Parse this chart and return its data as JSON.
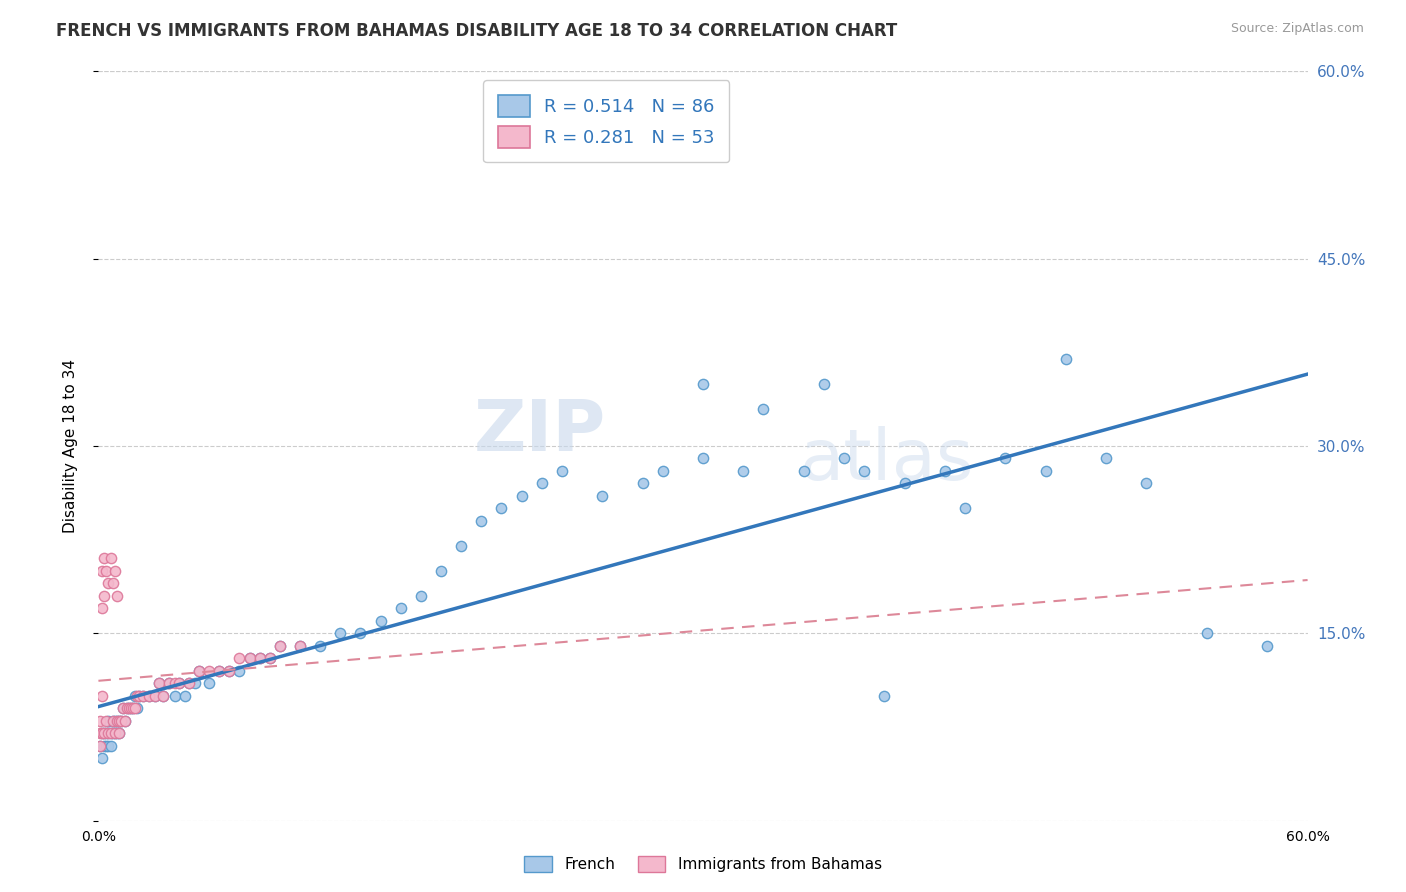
{
  "title": "FRENCH VS IMMIGRANTS FROM BAHAMAS DISABILITY AGE 18 TO 34 CORRELATION CHART",
  "source": "Source: ZipAtlas.com",
  "ylabel": "Disability Age 18 to 34",
  "x_min": 0.0,
  "x_max": 0.6,
  "y_min": 0.0,
  "y_max": 0.6,
  "legend_labels": [
    "French",
    "Immigrants from Bahamas"
  ],
  "french_color": "#a8c8e8",
  "french_edge_color": "#5599cc",
  "bahamas_color": "#f4b8cc",
  "bahamas_edge_color": "#dd7799",
  "french_line_color": "#3377bb",
  "bahamas_line_color": "#dd8899",
  "r_french": 0.514,
  "n_french": 86,
  "r_bahamas": 0.281,
  "n_bahamas": 53,
  "watermark_zip": "ZIP",
  "watermark_atlas": "atlas",
  "french_scatter_x": [
    0.001,
    0.002,
    0.002,
    0.003,
    0.003,
    0.004,
    0.004,
    0.005,
    0.005,
    0.005,
    0.006,
    0.006,
    0.007,
    0.007,
    0.008,
    0.008,
    0.009,
    0.009,
    0.01,
    0.01,
    0.011,
    0.012,
    0.013,
    0.014,
    0.015,
    0.016,
    0.017,
    0.018,
    0.019,
    0.02,
    0.022,
    0.025,
    0.028,
    0.03,
    0.032,
    0.035,
    0.038,
    0.04,
    0.043,
    0.045,
    0.048,
    0.05,
    0.055,
    0.06,
    0.065,
    0.07,
    0.075,
    0.08,
    0.085,
    0.09,
    0.1,
    0.11,
    0.12,
    0.13,
    0.14,
    0.15,
    0.16,
    0.17,
    0.18,
    0.19,
    0.2,
    0.21,
    0.22,
    0.23,
    0.25,
    0.27,
    0.28,
    0.3,
    0.32,
    0.35,
    0.37,
    0.38,
    0.4,
    0.42,
    0.45,
    0.47,
    0.5,
    0.52,
    0.55,
    0.58,
    0.3,
    0.33,
    0.36,
    0.39,
    0.43,
    0.48
  ],
  "french_scatter_y": [
    0.06,
    0.05,
    0.07,
    0.06,
    0.07,
    0.06,
    0.07,
    0.06,
    0.07,
    0.08,
    0.06,
    0.07,
    0.07,
    0.08,
    0.07,
    0.08,
    0.07,
    0.08,
    0.07,
    0.08,
    0.08,
    0.09,
    0.08,
    0.09,
    0.09,
    0.09,
    0.09,
    0.1,
    0.09,
    0.1,
    0.1,
    0.1,
    0.1,
    0.11,
    0.1,
    0.11,
    0.1,
    0.11,
    0.1,
    0.11,
    0.11,
    0.12,
    0.11,
    0.12,
    0.12,
    0.12,
    0.13,
    0.13,
    0.13,
    0.14,
    0.14,
    0.14,
    0.15,
    0.15,
    0.16,
    0.17,
    0.18,
    0.2,
    0.22,
    0.24,
    0.25,
    0.26,
    0.27,
    0.28,
    0.26,
    0.27,
    0.28,
    0.29,
    0.28,
    0.28,
    0.29,
    0.28,
    0.27,
    0.28,
    0.29,
    0.28,
    0.29,
    0.27,
    0.15,
    0.14,
    0.35,
    0.33,
    0.35,
    0.1,
    0.25,
    0.37
  ],
  "bahamas_scatter_x": [
    0.001,
    0.001,
    0.001,
    0.002,
    0.002,
    0.002,
    0.002,
    0.003,
    0.003,
    0.003,
    0.004,
    0.004,
    0.005,
    0.005,
    0.006,
    0.006,
    0.007,
    0.007,
    0.008,
    0.008,
    0.009,
    0.009,
    0.01,
    0.01,
    0.011,
    0.012,
    0.013,
    0.014,
    0.015,
    0.016,
    0.017,
    0.018,
    0.019,
    0.02,
    0.022,
    0.025,
    0.028,
    0.03,
    0.032,
    0.035,
    0.038,
    0.04,
    0.045,
    0.05,
    0.055,
    0.06,
    0.065,
    0.07,
    0.075,
    0.08,
    0.085,
    0.09,
    0.1
  ],
  "bahamas_scatter_y": [
    0.06,
    0.07,
    0.08,
    0.07,
    0.1,
    0.17,
    0.2,
    0.07,
    0.18,
    0.21,
    0.08,
    0.2,
    0.07,
    0.19,
    0.07,
    0.21,
    0.08,
    0.19,
    0.07,
    0.2,
    0.08,
    0.18,
    0.07,
    0.08,
    0.08,
    0.09,
    0.08,
    0.09,
    0.09,
    0.09,
    0.09,
    0.09,
    0.1,
    0.1,
    0.1,
    0.1,
    0.1,
    0.11,
    0.1,
    0.11,
    0.11,
    0.11,
    0.11,
    0.12,
    0.12,
    0.12,
    0.12,
    0.13,
    0.13,
    0.13,
    0.13,
    0.14,
    0.14
  ]
}
